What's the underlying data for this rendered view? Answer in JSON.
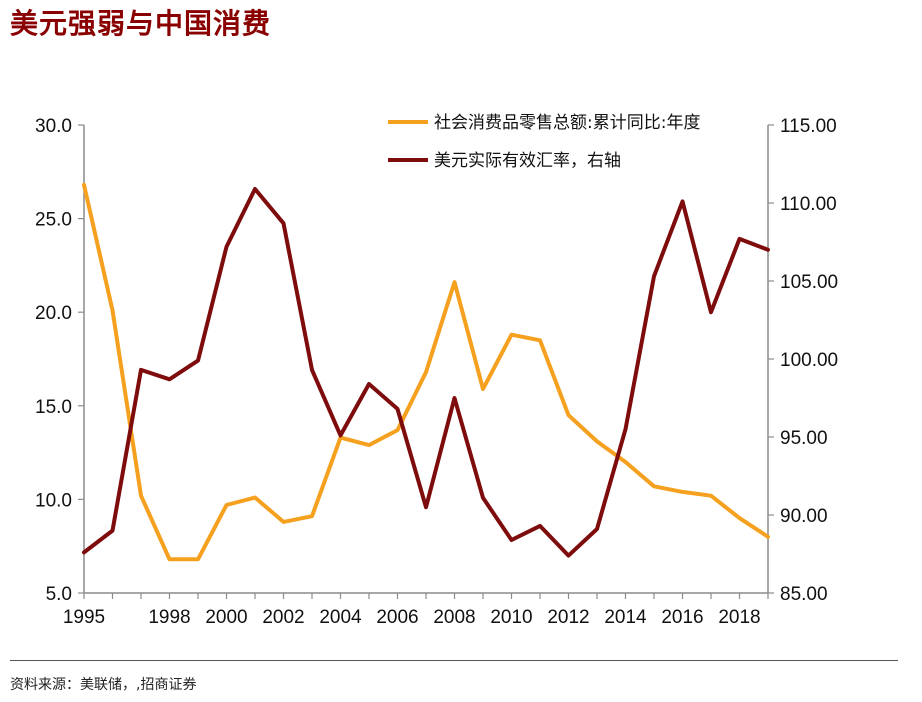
{
  "title": "美元强弱与中国消费",
  "source": "资料来源：美联储，,招商证券",
  "chart_data": {
    "type": "line",
    "years": [
      1995,
      1996,
      1997,
      1998,
      1999,
      2000,
      2001,
      2002,
      2003,
      2004,
      2005,
      2006,
      2007,
      2008,
      2009,
      2010,
      2011,
      2012,
      2013,
      2014,
      2015,
      2016,
      2017,
      2018,
      2019
    ],
    "x_ticks": [
      "1995",
      "1998",
      "2000",
      "2002",
      "2004",
      "2006",
      "2008",
      "2010",
      "2012",
      "2014",
      "2016",
      "2018"
    ],
    "left_axis": {
      "ylim": [
        5,
        30
      ],
      "ticks": [
        "30.0",
        "25.0",
        "20.0",
        "15.0",
        "10.0",
        "5.0"
      ]
    },
    "right_axis": {
      "ylim": [
        85,
        115
      ],
      "ticks": [
        "115.00",
        "110.00",
        "105.00",
        "100.00",
        "95.00",
        "90.00",
        "85.00"
      ]
    },
    "series": [
      {
        "name": "社会消费品零售总额:累计同比:年度",
        "axis": "left",
        "color": "#f5a01e",
        "values": [
          26.8,
          20.1,
          10.2,
          6.8,
          6.8,
          9.7,
          10.1,
          8.8,
          9.1,
          13.3,
          12.9,
          13.7,
          16.8,
          21.6,
          15.9,
          18.8,
          18.5,
          14.5,
          13.1,
          12.0,
          10.7,
          10.4,
          10.2,
          9.0,
          8.0
        ]
      },
      {
        "name": "美元实际有效汇率，右轴",
        "axis": "right",
        "color": "#7e0c0c",
        "values": [
          87.6,
          89.0,
          99.3,
          98.7,
          99.9,
          107.2,
          110.9,
          108.7,
          99.3,
          95.1,
          98.4,
          96.8,
          90.5,
          97.5,
          91.1,
          88.4,
          89.3,
          87.4,
          89.1,
          95.5,
          105.3,
          110.1,
          103.0,
          107.7,
          107.0
        ]
      }
    ]
  }
}
